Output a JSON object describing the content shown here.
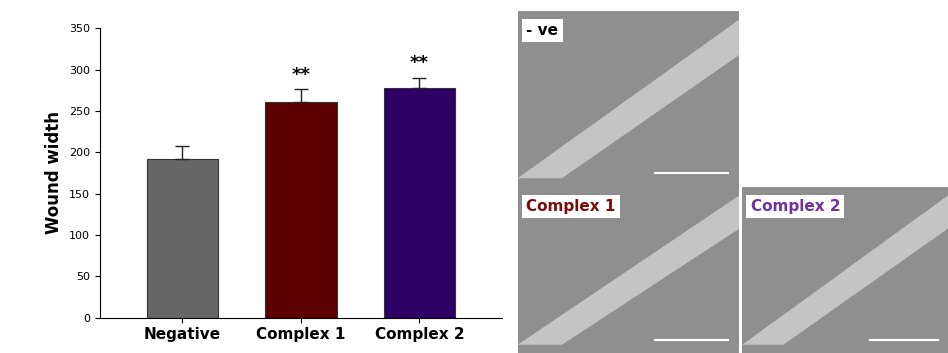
{
  "chart_data": {
    "type": "bar",
    "y_label": "Wound width",
    "categories": [
      "Negative",
      "Complex 1",
      "Complex 2"
    ],
    "values": [
      192,
      261,
      278
    ],
    "errors": [
      16,
      15,
      12
    ],
    "colors": [
      "#666666",
      "#5c0000",
      "#2e0066"
    ],
    "annotations": [
      {
        "category": "Complex 1",
        "text": "**"
      },
      {
        "category": "Complex 2",
        "text": "**"
      }
    ],
    "ylim": [
      0,
      350
    ],
    "yticks": [
      0,
      50,
      100,
      150,
      200,
      250,
      300,
      350
    ],
    "grid": false
  },
  "image_panels": [
    {
      "label": "- ve",
      "color": "#000000"
    },
    {
      "label": "Complex 1",
      "color": "#7b0a0a"
    },
    {
      "label": "Complex 2",
      "color": "#7030a0"
    }
  ]
}
